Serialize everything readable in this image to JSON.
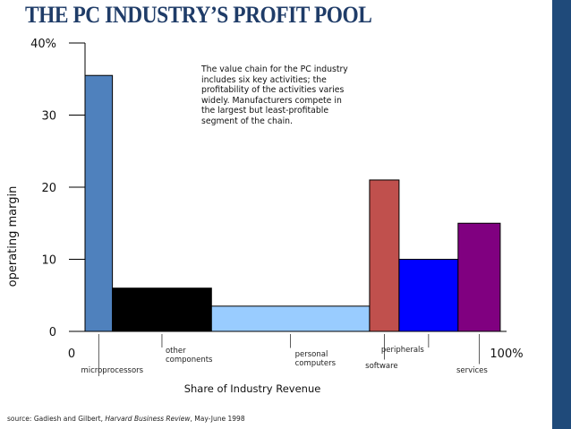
{
  "title": "THE PC INDUSTRY’S PROFIT POOL",
  "note": "The value chain for the PC industry\nincludes six key activities; the\nprofitability of the activities varies\nwidely.  Manufacturers compete in\nthe largest but least-profitable\nsegment of the chain.",
  "source": {
    "prefix": "source: Gadiesh and Gilbert, ",
    "publication": "Harvard Business Review",
    "suffix": ", May-June 1998"
  },
  "colors": {
    "sidebar": "#1f4a7a",
    "title": "#1f3c68"
  },
  "chart_data": {
    "type": "bar",
    "variable_width": true,
    "xlabel": "Share of Industry Revenue",
    "ylabel": "operating margin",
    "xlim": [
      0,
      100
    ],
    "ylim": [
      0,
      40
    ],
    "yticks": [
      "0",
      "10",
      "20",
      "30",
      "40%"
    ],
    "xticks": [
      "0",
      "100%"
    ],
    "grid": false,
    "segments": [
      {
        "label": "microprocessors",
        "share_start": 0,
        "share_end": 6.5,
        "margin": 35.5,
        "color": "#4f81bd"
      },
      {
        "label": "other\ncomponents",
        "share_start": 6.5,
        "share_end": 30,
        "margin": 6,
        "color": "#000000"
      },
      {
        "label": "personal\ncomputers",
        "share_start": 30,
        "share_end": 67.5,
        "margin": 3.5,
        "color": "#99ccff"
      },
      {
        "label": "software",
        "share_start": 67.5,
        "share_end": 74.5,
        "margin": 21,
        "color": "#c0504d"
      },
      {
        "label": "peripherals",
        "share_start": 74.5,
        "share_end": 88.5,
        "margin": 10,
        "color": "#0000ff"
      },
      {
        "label": "services",
        "share_start": 88.5,
        "share_end": 98.5,
        "margin": 15,
        "color": "#800080"
      }
    ]
  }
}
